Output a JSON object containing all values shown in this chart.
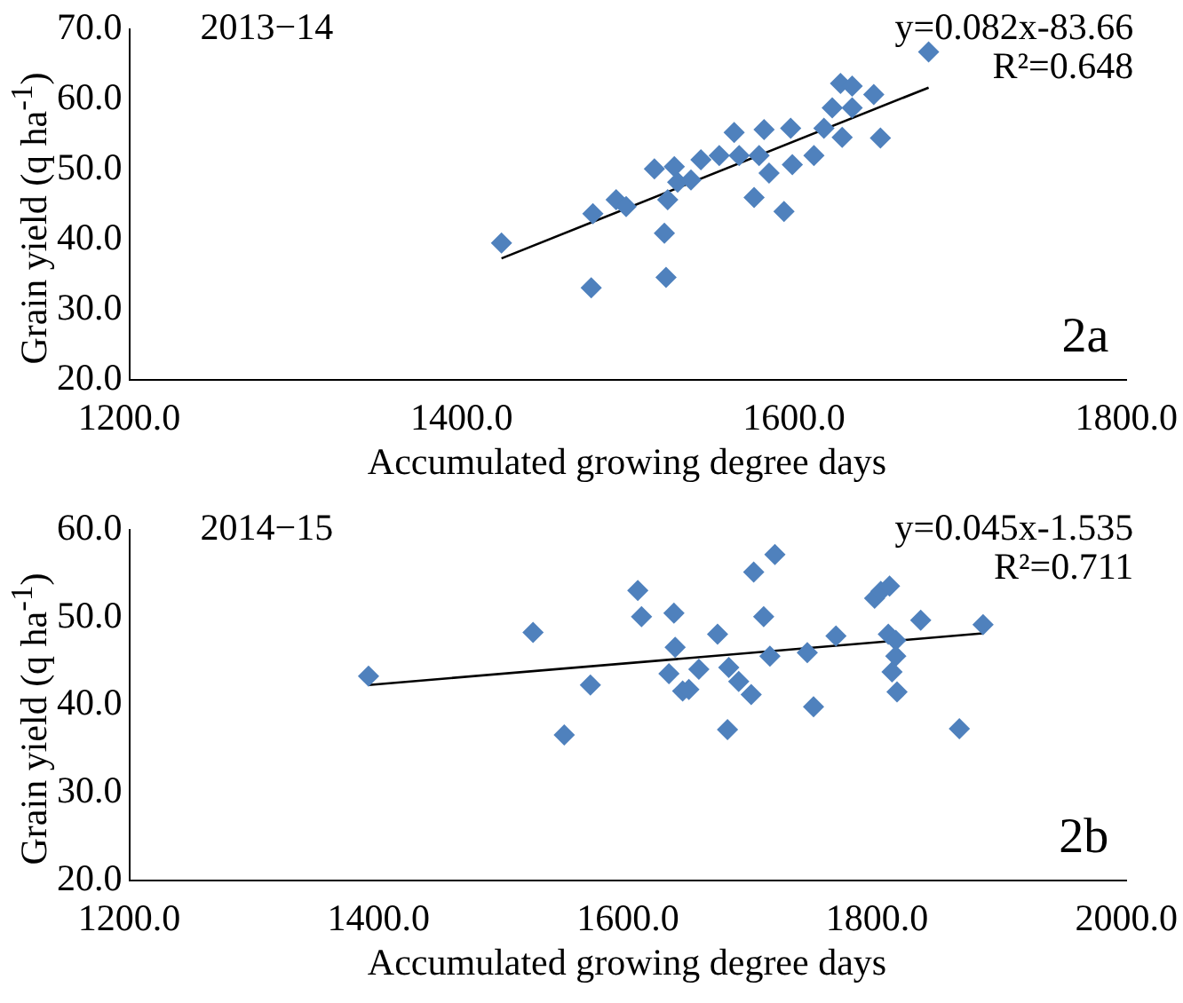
{
  "chart_data": [
    {
      "type": "scatter",
      "xlabel": "Accumulated growing degree days",
      "ylabel": "Grain yield (q ha$^{-1}$)",
      "annotations": [
        "2013−14",
        "y=0.082x-83.66",
        "R²=0.648",
        "2a"
      ],
      "xlim": [
        1200,
        1800
      ],
      "xticks": [
        {
          "value": 1200,
          "label": "1200.0"
        },
        {
          "value": 1400,
          "label": "1400.0"
        },
        {
          "value": 1600,
          "label": "1600.0"
        },
        {
          "value": 1800,
          "label": "1800.0"
        }
      ],
      "ylim": [
        20,
        70
      ],
      "yticks": [
        {
          "value": 20,
          "label": "20.0"
        },
        {
          "value": 30,
          "label": "30.0"
        },
        {
          "value": 40,
          "label": "40.0"
        },
        {
          "value": 50,
          "label": "50.0"
        },
        {
          "value": 60,
          "label": "60.0"
        },
        {
          "value": 70,
          "label": "70.0"
        }
      ],
      "grid": false,
      "legend": false,
      "marker": "diamond",
      "series": [
        {
          "type": "scatter",
          "color": "#4f81bd",
          "x": [
            1424,
            1478,
            1479,
            1493,
            1499,
            1516,
            1522,
            1523,
            1524,
            1528,
            1530,
            1538,
            1544,
            1555,
            1564,
            1567,
            1576,
            1579,
            1582,
            1585,
            1594,
            1598,
            1599,
            1612,
            1618,
            1623,
            1628,
            1629,
            1635,
            1635,
            1648,
            1652,
            1681
          ],
          "values": [
            39.5,
            33.1,
            43.7,
            45.7,
            44.7,
            50.1,
            40.9,
            34.6,
            45.7,
            50.4,
            48.2,
            48.5,
            51.4,
            52.0,
            55.3,
            52.0,
            46.0,
            52.0,
            55.7,
            49.5,
            44.0,
            55.9,
            50.7,
            52.0,
            55.9,
            58.8,
            62.3,
            54.6,
            61.9,
            58.8,
            60.7,
            54.5,
            66.8
          ]
        },
        {
          "type": "line",
          "color": "#000000",
          "marker": "none",
          "x": [
            1424,
            1681
          ],
          "values": [
            37.3,
            61.7
          ]
        }
      ]
    },
    {
      "type": "scatter",
      "xlabel": "Accumulated growing degree days",
      "ylabel": "Grain yield (q ha$^{-1}$)",
      "annotations": [
        "2014−15",
        "y=0.045x-1.535",
        "R²=0.711",
        "2b"
      ],
      "xlim": [
        1200,
        2000
      ],
      "xticks": [
        {
          "value": 1200,
          "label": "1200.0"
        },
        {
          "value": 1400,
          "label": "1400.0"
        },
        {
          "value": 1600,
          "label": "1600.0"
        },
        {
          "value": 1800,
          "label": "1800.0"
        },
        {
          "value": 2000,
          "label": "2000.0"
        }
      ],
      "ylim": [
        20,
        60
      ],
      "yticks": [
        {
          "value": 20,
          "label": "20.0"
        },
        {
          "value": 30,
          "label": "30.0"
        },
        {
          "value": 40,
          "label": "40.0"
        },
        {
          "value": 50,
          "label": "50.0"
        },
        {
          "value": 60,
          "label": "60.0"
        }
      ],
      "grid": false,
      "legend": false,
      "marker": "diamond",
      "series": [
        {
          "type": "scatter",
          "color": "#4f81bd",
          "x": [
            1392,
            1524,
            1549,
            1570,
            1608,
            1611,
            1633,
            1637,
            1638,
            1644,
            1649,
            1657,
            1672,
            1680,
            1681,
            1689,
            1699,
            1701,
            1709,
            1714,
            1718,
            1744,
            1749,
            1767,
            1798,
            1803,
            1810,
            1809,
            1815,
            1815,
            1812,
            1816,
            1835,
            1866,
            1885
          ],
          "values": [
            43.3,
            48.3,
            36.6,
            42.3,
            53.1,
            50.1,
            43.6,
            50.5,
            46.6,
            41.6,
            41.8,
            44.1,
            48.1,
            37.2,
            44.3,
            42.7,
            41.2,
            55.2,
            50.1,
            45.6,
            57.2,
            46.0,
            39.8,
            47.9,
            52.2,
            53.0,
            53.6,
            48.1,
            47.4,
            45.6,
            43.8,
            41.5,
            49.7,
            37.3,
            49.2
          ]
        },
        {
          "type": "line",
          "color": "#000000",
          "marker": "none",
          "x": [
            1392,
            1885
          ],
          "values": [
            42.3,
            48.2
          ]
        }
      ]
    }
  ]
}
